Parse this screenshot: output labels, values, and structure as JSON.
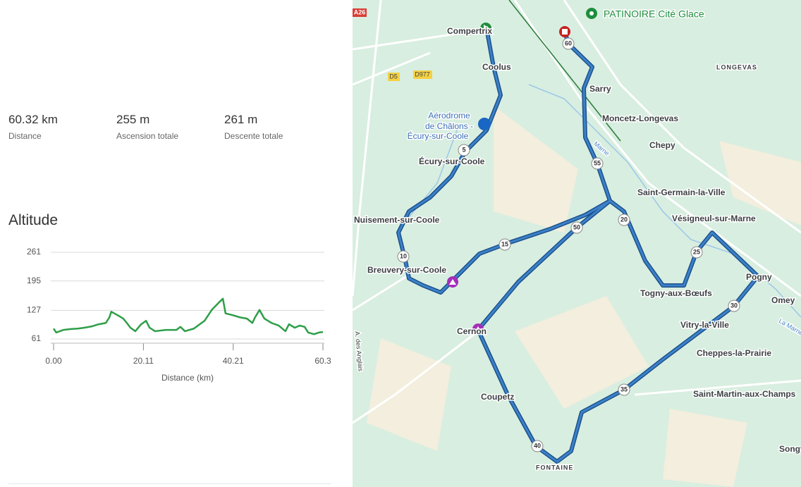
{
  "stats": [
    {
      "value": "60.32 km",
      "label": "Distance"
    },
    {
      "value": "255 m",
      "label": "Ascension totale"
    },
    {
      "value": "261 m",
      "label": "Descente totale"
    }
  ],
  "chart_data": {
    "type": "line",
    "title": "Altitude",
    "x_label": "Distance (km)",
    "x": [
      0,
      0.6,
      2.2,
      3.8,
      5.4,
      6.9,
      8.5,
      10.1,
      11.7,
      12.5,
      12.9,
      13.6,
      14.5,
      15.6,
      16.4,
      17.2,
      18.3,
      19.6,
      20.7,
      21.5,
      22.7,
      25.1,
      27.5,
      28.4,
      29.4,
      31.4,
      33.8,
      35.4,
      36.9,
      37.9,
      38.5,
      40.1,
      41.7,
      43.3,
      44.5,
      45.1,
      46.1,
      47.2,
      48.8,
      50.4,
      51.9,
      52.7,
      54.0,
      55.1,
      56.2,
      57.0,
      58.3,
      59.4,
      60.3
    ],
    "series": [
      {
        "color": "#2e9e48",
        "values": [
          85,
          76,
          82,
          84,
          85,
          87,
          90,
          95,
          98,
          111,
          124,
          120,
          115,
          108,
          98,
          87,
          79,
          95,
          103,
          87,
          79,
          82,
          82,
          89,
          79,
          85,
          103,
          128,
          144,
          154,
          120,
          116,
          111,
          108,
          98,
          111,
          128,
          108,
          98,
          92,
          79,
          95,
          87,
          92,
          89,
          76,
          72,
          76,
          77
        ]
      }
    ],
    "xlim": [
      0,
      60.3
    ],
    "xticks": [
      {
        "value": 0,
        "label": "0.00"
      },
      20.11,
      40.21,
      60.3
    ],
    "ylim": [
      61,
      261
    ],
    "yticks": [
      61,
      127,
      195,
      261
    ],
    "grid": true
  },
  "map": {
    "places": [
      "PATINOIRE Cité Glace",
      "Compertrix",
      "Coolus",
      "Aérodrome",
      "de Châlons -",
      "Écury-sur-Coole",
      "Écury-sur-Coole",
      "Sarry",
      "Moncetz-Longevas",
      "Chepy",
      "LONGEVAS",
      "Saint-Germain-la-Ville",
      "Vésigneul-sur-Marne",
      "Nuisement-sur-Coole",
      "Breuvery-sur-Coole",
      "Togny-aux-Bœufs",
      "Pogny",
      "Omey",
      "Vitry-la-Ville",
      "Cheppes-la-Prairie",
      "Cernon",
      "Coupetz",
      "Saint-Martin-aux-Champs",
      "Songy",
      "FONTAINE",
      "Marne",
      "La Marne",
      "A. des Anglais"
    ],
    "roads": [
      "A26",
      "D5",
      "D977"
    ],
    "markers": [
      "5",
      "10",
      "15",
      "20",
      "25",
      "30",
      "35",
      "40",
      "50",
      "55",
      "60"
    ]
  }
}
